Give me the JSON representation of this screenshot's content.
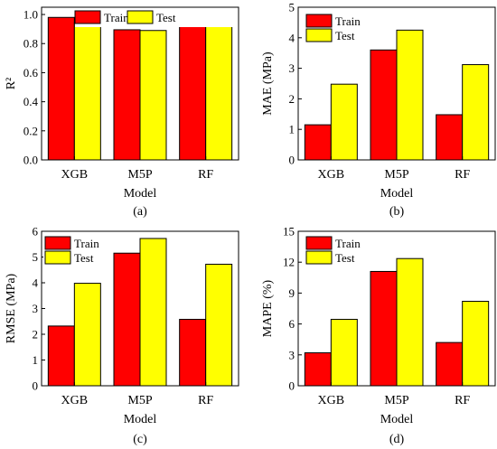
{
  "chart_data": [
    {
      "type": "bar",
      "panel_label": "(a)",
      "categories": [
        "XGB",
        "M5P",
        "RF"
      ],
      "series": [
        {
          "name": "Train",
          "values": [
            0.98,
            0.895,
            0.975
          ]
        },
        {
          "name": "Test",
          "values": [
            0.945,
            0.89,
            0.93
          ]
        }
      ],
      "xlabel": "Model",
      "ylabel": "R²",
      "ylim": [
        0,
        1.05
      ],
      "yticks": [
        "0.0",
        "0.2",
        "0.4",
        "0.6",
        "0.8",
        "1.0"
      ],
      "legend": "top-center",
      "grid": false
    },
    {
      "type": "bar",
      "panel_label": "(b)",
      "categories": [
        "XGB",
        "M5P",
        "RF"
      ],
      "series": [
        {
          "name": "Train",
          "values": [
            1.15,
            3.6,
            1.48
          ]
        },
        {
          "name": "Test",
          "values": [
            2.48,
            4.25,
            3.12
          ]
        }
      ],
      "xlabel": "Model",
      "ylabel": "MAE (MPa)",
      "ylim": [
        0,
        5
      ],
      "yticks": [
        "0",
        "1",
        "2",
        "3",
        "4",
        "5"
      ],
      "legend": "top-left",
      "grid": false
    },
    {
      "type": "bar",
      "panel_label": "(c)",
      "categories": [
        "XGB",
        "M5P",
        "RF"
      ],
      "series": [
        {
          "name": "Train",
          "values": [
            2.32,
            5.15,
            2.58
          ]
        },
        {
          "name": "Test",
          "values": [
            3.98,
            5.72,
            4.72
          ]
        }
      ],
      "xlabel": "Model",
      "ylabel": "RMSE (MPa)",
      "ylim": [
        0,
        6
      ],
      "yticks": [
        "0",
        "1",
        "2",
        "3",
        "4",
        "5",
        "6"
      ],
      "legend": "top-left",
      "grid": false
    },
    {
      "type": "bar",
      "panel_label": "(d)",
      "categories": [
        "XGB",
        "M5P",
        "RF"
      ],
      "series": [
        {
          "name": "Train",
          "values": [
            3.2,
            11.1,
            4.2
          ]
        },
        {
          "name": "Test",
          "values": [
            6.45,
            12.35,
            8.2
          ]
        }
      ],
      "xlabel": "Model",
      "ylabel": "MAPE (%)",
      "ylim": [
        0,
        15
      ],
      "yticks": [
        "0",
        "3",
        "6",
        "9",
        "12",
        "15"
      ],
      "legend": "top-left",
      "grid": false
    }
  ],
  "colors": {
    "train": "#ff0000",
    "test": "#ffff00",
    "stroke": "#000000"
  }
}
